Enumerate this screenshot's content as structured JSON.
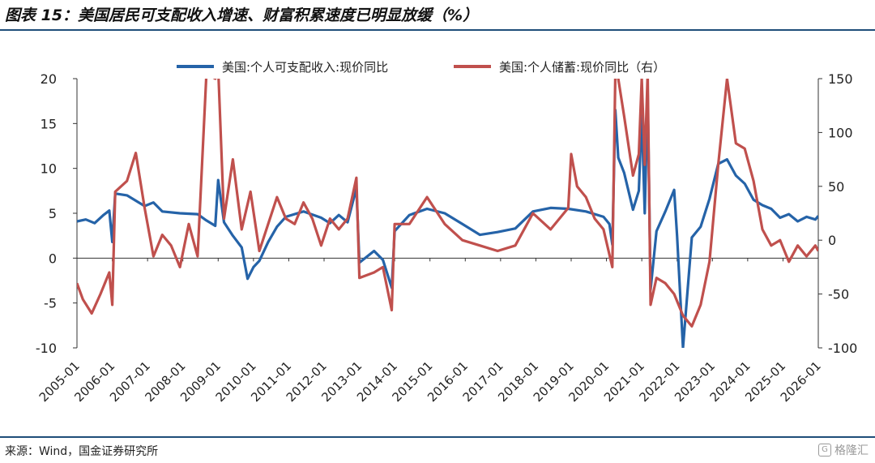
{
  "title": "图表 15：美国居民可支配收入增速、财富积累速度已明显放缓（%）",
  "source": "来源：Wind，国金证券研究所",
  "watermark": "格隆汇",
  "chart_data": {
    "type": "line",
    "x_ticks": [
      "2005-01",
      "2006-01",
      "2007-01",
      "2008-01",
      "2009-01",
      "2010-01",
      "2011-01",
      "2012-01",
      "2013-01",
      "2014-01",
      "2015-01",
      "2016-01",
      "2017-01",
      "2018-01",
      "2019-01",
      "2020-01",
      "2021-01",
      "2022-01",
      "2023-01",
      "2024-01",
      "2025-01",
      "2026-01"
    ],
    "y_left": {
      "min": -10,
      "max": 20,
      "ticks": [
        -10,
        -5,
        0,
        5,
        10,
        15,
        20
      ]
    },
    "y_right": {
      "min": -100,
      "max": 150,
      "ticks": [
        -100,
        -50,
        0,
        50,
        100,
        150
      ]
    },
    "legend_position": "top",
    "grid": false,
    "colors": {
      "series1": "#2563a8",
      "series2": "#c0504d"
    },
    "series": [
      {
        "name": "美国:个人可支配收入:现价同比",
        "axis": "left",
        "points": [
          [
            "2005-01",
            4.1
          ],
          [
            "2005-04",
            4.3
          ],
          [
            "2005-07",
            3.9
          ],
          [
            "2005-10",
            4.8
          ],
          [
            "2005-12",
            5.3
          ],
          [
            "2006-01",
            1.8
          ],
          [
            "2006-02",
            7.2
          ],
          [
            "2006-06",
            7.0
          ],
          [
            "2006-12",
            5.8
          ],
          [
            "2007-03",
            6.2
          ],
          [
            "2007-06",
            5.2
          ],
          [
            "2007-12",
            5.0
          ],
          [
            "2008-06",
            4.9
          ],
          [
            "2008-09",
            4.2
          ],
          [
            "2008-12",
            3.6
          ],
          [
            "2009-01",
            8.7
          ],
          [
            "2009-03",
            4.0
          ],
          [
            "2009-06",
            2.5
          ],
          [
            "2009-09",
            1.2
          ],
          [
            "2009-11",
            -2.3
          ],
          [
            "2010-01",
            -1.0
          ],
          [
            "2010-03",
            -0.3
          ],
          [
            "2010-06",
            1.8
          ],
          [
            "2010-09",
            3.5
          ],
          [
            "2010-12",
            4.6
          ],
          [
            "2011-06",
            5.2
          ],
          [
            "2011-12",
            4.5
          ],
          [
            "2012-03",
            3.9
          ],
          [
            "2012-06",
            4.8
          ],
          [
            "2012-09",
            4.0
          ],
          [
            "2012-12",
            7.8
          ],
          [
            "2013-01",
            -0.5
          ],
          [
            "2013-06",
            0.8
          ],
          [
            "2013-09",
            -0.2
          ],
          [
            "2013-12",
            -3.3
          ],
          [
            "2014-01",
            3.0
          ],
          [
            "2014-06",
            4.8
          ],
          [
            "2014-12",
            5.5
          ],
          [
            "2015-06",
            5.0
          ],
          [
            "2015-12",
            3.8
          ],
          [
            "2016-06",
            2.6
          ],
          [
            "2016-12",
            2.9
          ],
          [
            "2017-06",
            3.3
          ],
          [
            "2017-12",
            5.2
          ],
          [
            "2018-06",
            5.6
          ],
          [
            "2018-12",
            5.5
          ],
          [
            "2019-06",
            5.2
          ],
          [
            "2019-12",
            4.6
          ],
          [
            "2020-01",
            4.2
          ],
          [
            "2020-02",
            3.8
          ],
          [
            "2020-03",
            1.5
          ],
          [
            "2020-04",
            16.5
          ],
          [
            "2020-05",
            11.2
          ],
          [
            "2020-07",
            9.5
          ],
          [
            "2020-10",
            5.4
          ],
          [
            "2020-12",
            7.5
          ],
          [
            "2021-01",
            16.2
          ],
          [
            "2021-02",
            5.0
          ],
          [
            "2021-03",
            18.5
          ],
          [
            "2021-04",
            -3.5
          ],
          [
            "2021-06",
            3.0
          ],
          [
            "2021-09",
            5.2
          ],
          [
            "2021-12",
            7.6
          ],
          [
            "2022-01",
            2.5
          ],
          [
            "2022-03",
            -10.0
          ],
          [
            "2022-06",
            2.3
          ],
          [
            "2022-09",
            3.5
          ],
          [
            "2022-12",
            6.6
          ],
          [
            "2023-03",
            10.5
          ],
          [
            "2023-06",
            11.0
          ],
          [
            "2023-09",
            9.2
          ],
          [
            "2023-12",
            8.3
          ],
          [
            "2024-03",
            6.5
          ],
          [
            "2024-06",
            5.9
          ],
          [
            "2024-09",
            5.5
          ],
          [
            "2024-12",
            4.5
          ],
          [
            "2025-03",
            4.9
          ],
          [
            "2025-06",
            4.1
          ],
          [
            "2025-09",
            4.6
          ],
          [
            "2025-12",
            4.3
          ],
          [
            "2026-01",
            4.7
          ]
        ]
      },
      {
        "name": "美国:个人储蓄:现价同比（右）",
        "axis": "right",
        "points": [
          [
            "2005-01",
            -40
          ],
          [
            "2005-03",
            -55
          ],
          [
            "2005-06",
            -68
          ],
          [
            "2005-09",
            -50
          ],
          [
            "2005-12",
            -30
          ],
          [
            "2006-01",
            -60
          ],
          [
            "2006-02",
            45
          ],
          [
            "2006-06",
            55
          ],
          [
            "2006-09",
            81
          ],
          [
            "2006-12",
            30
          ],
          [
            "2007-03",
            -15
          ],
          [
            "2007-06",
            5
          ],
          [
            "2007-09",
            -5
          ],
          [
            "2007-12",
            -25
          ],
          [
            "2008-03",
            15
          ],
          [
            "2008-06",
            -15
          ],
          [
            "2008-09",
            155
          ],
          [
            "2008-12",
            150
          ],
          [
            "2009-01",
            160
          ],
          [
            "2009-03",
            20
          ],
          [
            "2009-06",
            75
          ],
          [
            "2009-09",
            10
          ],
          [
            "2009-12",
            45
          ],
          [
            "2010-03",
            -10
          ],
          [
            "2010-06",
            15
          ],
          [
            "2010-09",
            40
          ],
          [
            "2010-12",
            20
          ],
          [
            "2011-03",
            15
          ],
          [
            "2011-06",
            35
          ],
          [
            "2011-09",
            20
          ],
          [
            "2011-12",
            -5
          ],
          [
            "2012-03",
            20
          ],
          [
            "2012-06",
            10
          ],
          [
            "2012-09",
            20
          ],
          [
            "2012-12",
            58
          ],
          [
            "2013-01",
            -35
          ],
          [
            "2013-06",
            -30
          ],
          [
            "2013-09",
            -25
          ],
          [
            "2013-12",
            -65
          ],
          [
            "2014-01",
            15
          ],
          [
            "2014-06",
            15
          ],
          [
            "2014-12",
            40
          ],
          [
            "2015-06",
            15
          ],
          [
            "2015-12",
            0
          ],
          [
            "2016-06",
            -5
          ],
          [
            "2016-12",
            -10
          ],
          [
            "2017-06",
            -5
          ],
          [
            "2017-12",
            25
          ],
          [
            "2018-06",
            10
          ],
          [
            "2018-12",
            30
          ],
          [
            "2019-01",
            80
          ],
          [
            "2019-03",
            50
          ],
          [
            "2019-06",
            40
          ],
          [
            "2019-09",
            20
          ],
          [
            "2019-12",
            10
          ],
          [
            "2020-03",
            -25
          ],
          [
            "2020-04",
            155
          ],
          [
            "2020-05",
            150
          ],
          [
            "2020-07",
            115
          ],
          [
            "2020-10",
            60
          ],
          [
            "2020-12",
            80
          ],
          [
            "2021-01",
            150
          ],
          [
            "2021-02",
            70
          ],
          [
            "2021-03",
            155
          ],
          [
            "2021-04",
            -60
          ],
          [
            "2021-06",
            -35
          ],
          [
            "2021-09",
            -40
          ],
          [
            "2021-12",
            -50
          ],
          [
            "2022-03",
            -70
          ],
          [
            "2022-06",
            -80
          ],
          [
            "2022-09",
            -60
          ],
          [
            "2022-12",
            -20
          ],
          [
            "2023-03",
            70
          ],
          [
            "2023-06",
            150
          ],
          [
            "2023-09",
            90
          ],
          [
            "2023-12",
            85
          ],
          [
            "2024-03",
            55
          ],
          [
            "2024-06",
            10
          ],
          [
            "2024-09",
            -5
          ],
          [
            "2024-12",
            0
          ],
          [
            "2025-03",
            -20
          ],
          [
            "2025-06",
            -5
          ],
          [
            "2025-09",
            -15
          ],
          [
            "2025-12",
            -5
          ],
          [
            "2026-01",
            -10
          ]
        ]
      }
    ]
  }
}
